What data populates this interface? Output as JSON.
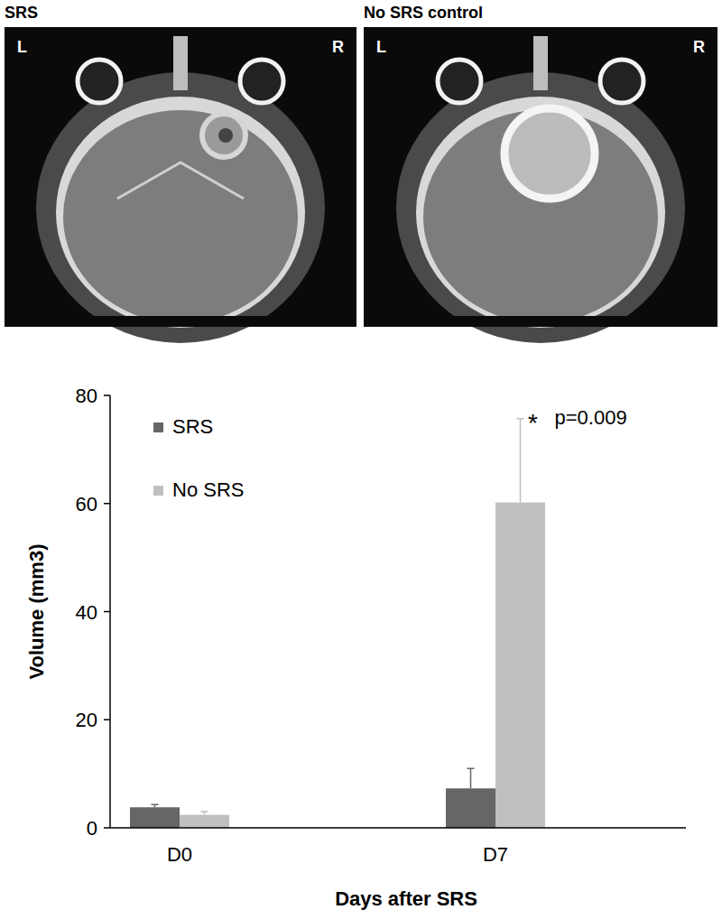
{
  "panels": [
    {
      "title": "SRS",
      "left": "L",
      "right": "R"
    },
    {
      "title": "No SRS control",
      "left": "L",
      "right": "R"
    }
  ],
  "chart_data": {
    "type": "bar",
    "categories": [
      "D0",
      "D7"
    ],
    "series": [
      {
        "name": "SRS",
        "color": "#666666",
        "values": [
          3.8,
          7.3
        ],
        "errors": [
          0.5,
          3.7
        ]
      },
      {
        "name": "No SRS",
        "color": "#c0c0c0",
        "values": [
          2.4,
          60.2
        ],
        "errors": [
          0.6,
          15.5
        ]
      }
    ],
    "ylim": [
      0,
      80
    ],
    "yticks": [
      0,
      20,
      40,
      60,
      80
    ],
    "x_label": "Days after SRS",
    "y_label": "Volume (mm3)",
    "annotations": [
      "*",
      "p=0.009"
    ],
    "legend": "top-left",
    "grid": false
  }
}
